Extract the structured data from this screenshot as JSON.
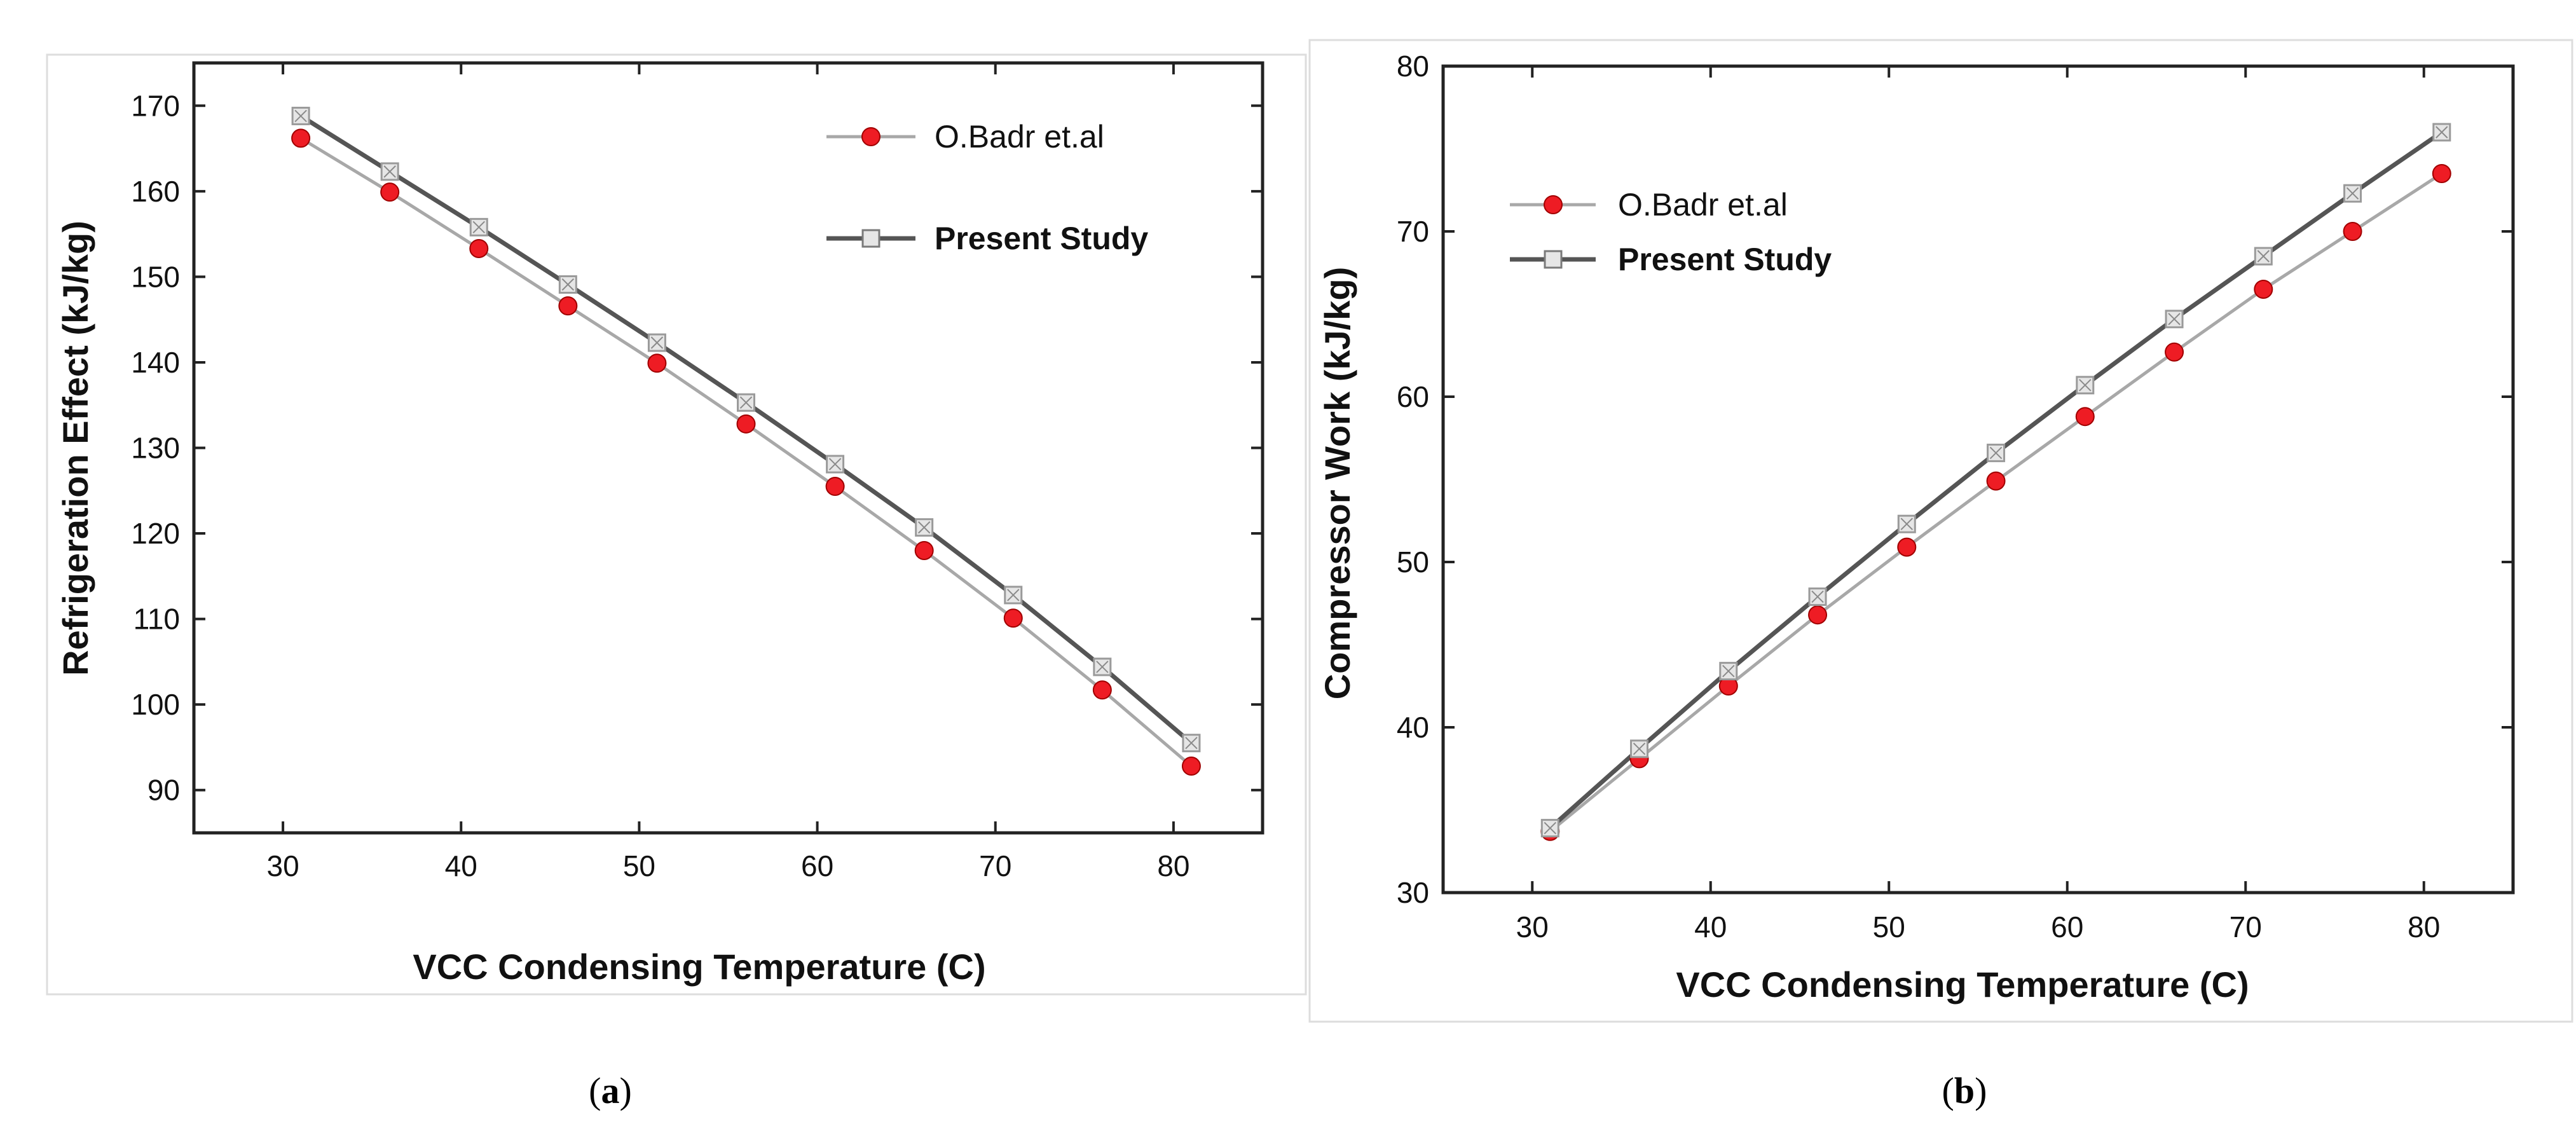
{
  "colors": {
    "badr_fill": "#ee1c24",
    "badr_line": "#a8a8a8",
    "present_line": "#555555",
    "present_marker": "#9a9a9a",
    "axis": "#222222",
    "panel_border": "#dddddd"
  },
  "chart_data": [
    {
      "id": "a",
      "type": "line",
      "caption": "(a)",
      "caption_letter": "a",
      "xlabel": "VCC Condensing Temperature (C)",
      "ylabel": "Refrigeration Effect (kJ/kg)",
      "xlim": [
        25,
        85
      ],
      "ylim": [
        85,
        175
      ],
      "xticks": [
        30,
        40,
        50,
        60,
        70,
        80
      ],
      "yticks": [
        90,
        100,
        110,
        120,
        130,
        140,
        150,
        160,
        170
      ],
      "legend_position": "top-right",
      "x": [
        31,
        36,
        41,
        46,
        51,
        56,
        61,
        66,
        71,
        76,
        81
      ],
      "series": [
        {
          "name": "O.Badr et.al",
          "marker": "circle",
          "values": [
            166.2,
            159.9,
            153.3,
            146.6,
            139.9,
            132.8,
            125.5,
            118.0,
            110.1,
            101.7,
            92.8
          ]
        },
        {
          "name": "Present Study",
          "marker": "square",
          "values": [
            168.8,
            162.3,
            155.8,
            149.1,
            142.3,
            135.3,
            128.1,
            120.7,
            112.8,
            104.4,
            95.5
          ]
        }
      ]
    },
    {
      "id": "b",
      "type": "line",
      "caption": "(b)",
      "caption_letter": "b",
      "xlabel": "VCC Condensing Temperature (C)",
      "ylabel": "Compressor Work (kJ/kg)",
      "xlim": [
        25,
        85
      ],
      "ylim": [
        30,
        80
      ],
      "xticks": [
        30,
        40,
        50,
        60,
        70,
        80
      ],
      "yticks": [
        30,
        40,
        50,
        60,
        70,
        80
      ],
      "legend_position": "top-left",
      "x": [
        31,
        36,
        41,
        46,
        51,
        56,
        61,
        66,
        71,
        76,
        81
      ],
      "series": [
        {
          "name": "O.Badr et.al",
          "marker": "circle",
          "values": [
            33.7,
            38.1,
            42.5,
            46.8,
            50.9,
            54.9,
            58.8,
            62.7,
            66.5,
            70.0,
            73.5
          ]
        },
        {
          "name": "Present Study",
          "marker": "square",
          "values": [
            33.9,
            38.7,
            43.4,
            47.9,
            52.3,
            56.6,
            60.7,
            64.7,
            68.5,
            72.3,
            76.0
          ]
        }
      ]
    }
  ]
}
